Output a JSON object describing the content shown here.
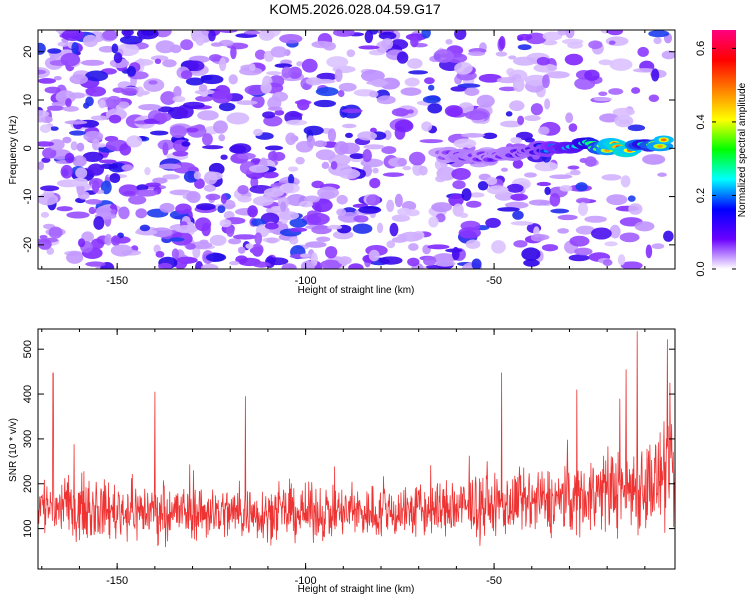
{
  "chart_data": [
    {
      "type": "heatmap",
      "title": "KOM5.2026.028.04.59.G17",
      "xlabel": "Height of straight line (km)",
      "ylabel": "Frequency (Hz)",
      "xlim": [
        -171,
        -2
      ],
      "ylim": [
        -25,
        24.5
      ],
      "xticks": [
        -150,
        -100,
        -50
      ],
      "yticks": [
        -20,
        -10,
        0,
        10,
        20
      ],
      "tick_labels_x": [
        "-150",
        "-100",
        "-50"
      ],
      "tick_labels_y": [
        "-20",
        "-10",
        "0",
        "10",
        "20"
      ],
      "colorbar": {
        "label": "Normalized spectral amplitude",
        "range": [
          0.0,
          0.65
        ],
        "ticks": [
          0.0,
          0.2,
          0.4,
          0.6
        ],
        "tick_labels": [
          "0.0",
          "0.2",
          "0.4",
          "0.6"
        ],
        "colors": [
          "#ffffff",
          "#6a00ff",
          "#0000ff",
          "#00ffff",
          "#00ff00",
          "#ffff00",
          "#ff8000",
          "#ff0000",
          "#ff0080"
        ]
      },
      "signal_track": {
        "x": [
          -64,
          -58,
          -52,
          -46,
          -40,
          -34,
          -28,
          -22,
          -16,
          -10,
          -4
        ],
        "freq": [
          -1.5,
          -2.0,
          -1.8,
          -1.2,
          -0.5,
          0.5,
          0.8,
          0.5,
          0.0,
          0.5,
          1.5
        ],
        "amplitude": [
          0.15,
          0.2,
          0.18,
          0.2,
          0.22,
          0.3,
          0.35,
          0.45,
          0.6,
          0.4,
          0.55
        ]
      }
    },
    {
      "type": "line",
      "xlabel": "Height of straight line (km)",
      "ylabel": "SNR (10 * v/v)",
      "xlim": [
        -171,
        -2
      ],
      "ylim": [
        10,
        545
      ],
      "xticks": [
        -150,
        -100,
        -50
      ],
      "yticks": [
        100,
        200,
        300,
        400,
        500
      ],
      "tick_labels_x": [
        "-150",
        "-100",
        "-50"
      ],
      "tick_labels_y": [
        "100",
        "200",
        "300",
        "400",
        "500"
      ],
      "color": "#ee3333",
      "baseline_profile": {
        "x": [
          -171,
          -150,
          -120,
          -90,
          -70,
          -50,
          -30,
          -20,
          -10,
          -2
        ],
        "mean": [
          150,
          140,
          135,
          135,
          140,
          150,
          165,
          185,
          200,
          210
        ],
        "spread": [
          75,
          70,
          65,
          65,
          70,
          75,
          85,
          100,
          120,
          125
        ]
      },
      "peaks": [
        {
          "x": -167,
          "y": 447
        },
        {
          "x": -140,
          "y": 405
        },
        {
          "x": -116,
          "y": 395
        },
        {
          "x": -48,
          "y": 448
        },
        {
          "x": -15,
          "y": 455
        },
        {
          "x": -12,
          "y": 540
        },
        {
          "x": -4,
          "y": 522
        },
        {
          "x": -28,
          "y": 410
        }
      ],
      "samples": 1500
    }
  ]
}
